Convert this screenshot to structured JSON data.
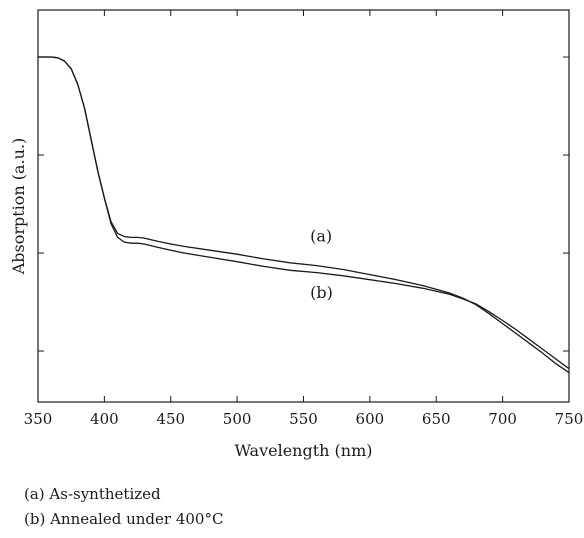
{
  "chart_data": {
    "type": "line",
    "title": "",
    "xlabel": "Wavelength (nm)",
    "ylabel": "Absorption (a.u.)",
    "xlim": [
      350,
      750
    ],
    "ylim": [
      0,
      10
    ],
    "x_ticks": [
      350,
      400,
      450,
      500,
      550,
      600,
      650,
      700,
      750
    ],
    "x_tick_labels": [
      "350",
      "400",
      "450",
      "500",
      "550",
      "600",
      "650",
      "700",
      "750"
    ],
    "y_ticks": [
      1.3,
      3.8,
      6.3,
      8.8
    ],
    "y_tick_labels_shown": false,
    "grid": false,
    "legend": "below-left",
    "series": [
      {
        "name": "(a)",
        "x": [
          350,
          360,
          365,
          370,
          375,
          380,
          385,
          390,
          395,
          400,
          405,
          410,
          415,
          420,
          425,
          430,
          440,
          450,
          460,
          480,
          500,
          520,
          540,
          560,
          580,
          600,
          620,
          640,
          660,
          670,
          680,
          690,
          700,
          710,
          720,
          730,
          740,
          750
        ],
        "y": [
          8.8,
          8.8,
          8.78,
          8.7,
          8.5,
          8.1,
          7.5,
          6.7,
          5.9,
          5.2,
          4.6,
          4.3,
          4.22,
          4.2,
          4.2,
          4.18,
          4.1,
          4.03,
          3.97,
          3.87,
          3.77,
          3.65,
          3.55,
          3.48,
          3.38,
          3.25,
          3.12,
          2.97,
          2.78,
          2.65,
          2.48,
          2.25,
          2.0,
          1.75,
          1.5,
          1.25,
          0.98,
          0.75
        ]
      },
      {
        "name": "(b)",
        "x": [
          350,
          360,
          365,
          370,
          375,
          380,
          385,
          390,
          395,
          400,
          405,
          410,
          415,
          420,
          425,
          430,
          440,
          450,
          460,
          480,
          500,
          520,
          540,
          560,
          580,
          600,
          620,
          640,
          660,
          670,
          680,
          690,
          700,
          710,
          720,
          730,
          740,
          750
        ],
        "y": [
          8.8,
          8.8,
          8.78,
          8.7,
          8.5,
          8.1,
          7.5,
          6.7,
          5.9,
          5.2,
          4.55,
          4.2,
          4.08,
          4.05,
          4.05,
          4.03,
          3.95,
          3.87,
          3.8,
          3.69,
          3.58,
          3.46,
          3.36,
          3.3,
          3.22,
          3.12,
          3.02,
          2.9,
          2.75,
          2.63,
          2.5,
          2.3,
          2.08,
          1.85,
          1.6,
          1.35,
          1.1,
          0.85
        ]
      }
    ],
    "annotations": [
      {
        "text": "(a)",
        "x": 555,
        "y": 4.1
      },
      {
        "text": "(b)",
        "x": 555,
        "y": 2.65
      }
    ]
  },
  "legend_lines": [
    "(a) As-synthetized",
    "(b) Annealed under 400°C"
  ]
}
